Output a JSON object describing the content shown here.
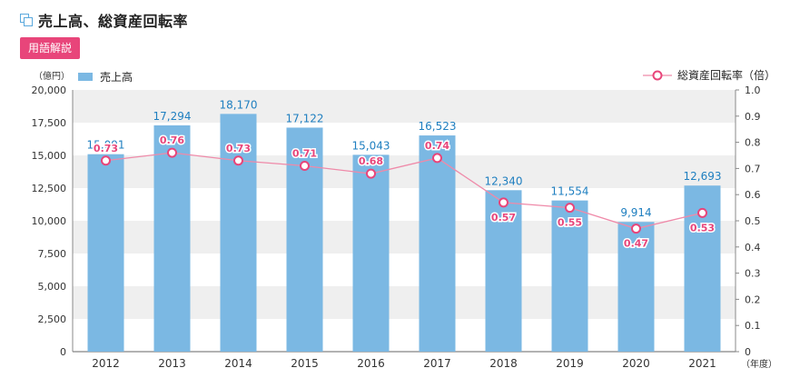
{
  "header": {
    "title": "売上高、総資産回転率",
    "glossary_label": "用語解説"
  },
  "chart_data": {
    "type": "bar+line",
    "categories": [
      "2012",
      "2013",
      "2014",
      "2015",
      "2016",
      "2017",
      "2018",
      "2019",
      "2020",
      "2021"
    ],
    "x_unit": "（年度）",
    "left_axis": {
      "unit": "（億円）",
      "min": 0,
      "max": 20000,
      "ticks": [
        "0",
        "2,500",
        "5,000",
        "7,500",
        "10,000",
        "12,500",
        "15,000",
        "17,500",
        "20,000"
      ]
    },
    "right_axis": {
      "unit": "",
      "min": 0,
      "max": 1.0,
      "ticks": [
        "0",
        "0.1",
        "0.2",
        "0.3",
        "0.4",
        "0.5",
        "0.6",
        "0.7",
        "0.8",
        "0.9",
        "1.0"
      ]
    },
    "series": [
      {
        "name": "売上高",
        "kind": "bar",
        "axis": "left",
        "color": "#7bb8e3",
        "values": [
          15091,
          17294,
          18170,
          17122,
          15043,
          16523,
          12340,
          11554,
          9914,
          12693
        ],
        "labels": [
          "15,091",
          "17,294",
          "18,170",
          "17,122",
          "15,043",
          "16,523",
          "12,340",
          "11,554",
          "9,914",
          "12,693"
        ]
      },
      {
        "name": "総資産回転率（倍）",
        "kind": "line",
        "axis": "right",
        "color": "#e8457a",
        "values": [
          0.73,
          0.76,
          0.73,
          0.71,
          0.68,
          0.74,
          0.57,
          0.55,
          0.47,
          0.53
        ],
        "labels": [
          "0.73",
          "0.76",
          "0.73",
          "0.71",
          "0.68",
          "0.74",
          "0.57",
          "0.55",
          "0.47",
          "0.53"
        ]
      }
    ],
    "legend": {
      "left_position": "top-left",
      "right_position": "top-right"
    },
    "grid": "alternating horizontal bands"
  }
}
